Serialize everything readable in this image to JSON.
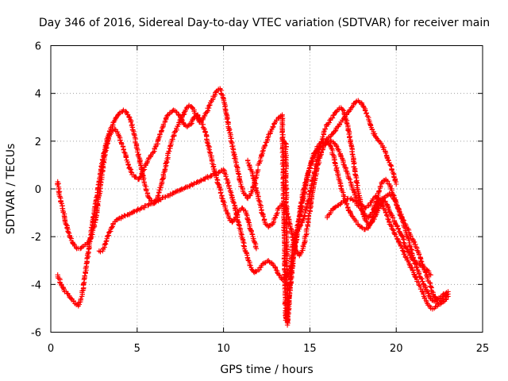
{
  "chart_data": {
    "type": "scatter",
    "title": "Day 346 of 2016, Sidereal Day-to-day VTEC variation (SDTVAR) for receiver main",
    "xlabel": "GPS time / hours",
    "ylabel": "SDTVAR / TECUs",
    "xlim": [
      0,
      25
    ],
    "ylim": [
      -6,
      6
    ],
    "xticks": [
      0,
      5,
      10,
      15,
      20,
      25
    ],
    "yticks": [
      -6,
      -4,
      -2,
      0,
      2,
      4,
      6
    ],
    "grid": true,
    "marker": "+",
    "color": "#ff0000",
    "series": [
      {
        "x": [
          0.4,
          0.5,
          0.7,
          0.9,
          1.1,
          1.3,
          1.5,
          1.7,
          1.9,
          2.1,
          2.3,
          2.5,
          2.7,
          2.9,
          3.1,
          3.3,
          3.5,
          3.7,
          3.9,
          4.1,
          4.3,
          4.5,
          4.7,
          4.9,
          5.1,
          5.3,
          5.5,
          5.7,
          5.9,
          6.1,
          6.3,
          6.5,
          6.7,
          6.9,
          7.1,
          7.3,
          7.5,
          7.7,
          7.9,
          8.1,
          8.3,
          8.5,
          8.7,
          8.9,
          9.1,
          9.3,
          9.5,
          9.7,
          9.9,
          10.1,
          10.3,
          10.5,
          10.7,
          10.9,
          11.1,
          11.3,
          11.5,
          11.7,
          11.9
        ],
        "y": [
          0.3,
          -0.3,
          -0.9,
          -1.5,
          -2.0,
          -2.3,
          -2.5,
          -2.5,
          -2.4,
          -2.3,
          -2.1,
          -1.6,
          -0.8,
          0.3,
          1.3,
          2.0,
          2.4,
          2.5,
          2.3,
          1.9,
          1.5,
          1.0,
          0.6,
          0.5,
          0.4,
          0.7,
          1.0,
          1.3,
          1.5,
          1.8,
          2.2,
          2.6,
          3.0,
          3.2,
          3.3,
          3.2,
          3.0,
          2.7,
          2.6,
          2.7,
          3.0,
          3.1,
          2.9,
          2.5,
          1.9,
          1.3,
          0.7,
          0.2,
          -0.3,
          -0.8,
          -1.2,
          -1.4,
          -1.2,
          -0.9,
          -0.8,
          -1.0,
          -1.5,
          -2.0,
          -2.5
        ]
      },
      {
        "x": [
          0.4,
          0.6,
          0.8,
          1.0,
          1.2,
          1.4,
          1.6,
          1.8,
          2.0,
          2.2,
          2.4,
          2.6,
          2.8,
          3.0,
          3.2,
          3.4,
          3.6,
          3.8,
          4.0,
          4.2,
          4.4,
          4.6,
          4.8,
          5.0,
          5.2,
          5.4,
          5.6,
          5.8,
          6.0,
          6.2,
          6.4,
          6.6,
          6.8,
          7.0,
          7.2,
          7.4,
          7.6,
          7.8,
          8.0,
          8.2,
          8.4,
          8.6,
          8.8,
          9.0,
          9.2,
          9.4,
          9.6,
          9.8,
          10.0,
          10.2,
          10.4,
          10.6,
          10.8,
          11.0,
          11.2,
          11.4,
          11.6,
          11.8,
          12.0
        ],
        "y": [
          -3.6,
          -4.0,
          -4.3,
          -4.4,
          -4.6,
          -4.8,
          -4.9,
          -4.5,
          -3.5,
          -2.5,
          -1.5,
          -0.6,
          0.3,
          1.2,
          1.9,
          2.4,
          2.7,
          3.0,
          3.2,
          3.3,
          3.2,
          2.9,
          2.4,
          1.7,
          1.0,
          0.3,
          -0.2,
          -0.5,
          -0.6,
          -0.3,
          0.2,
          0.8,
          1.5,
          2.0,
          2.4,
          2.7,
          3.0,
          3.3,
          3.5,
          3.4,
          3.1,
          2.8,
          2.9,
          3.2,
          3.5,
          3.8,
          4.1,
          4.2,
          3.8,
          3.0,
          2.2,
          1.5,
          0.8,
          0.2,
          -0.2,
          -0.4,
          -0.2,
          0.3,
          0.8
        ]
      },
      {
        "x": [
          2.8,
          3.0,
          3.2,
          3.4,
          3.6,
          3.8,
          10.0,
          10.2,
          10.4,
          10.6,
          10.8,
          11.0,
          11.2,
          11.4,
          11.6,
          11.8,
          12.0,
          12.2,
          12.4,
          12.6,
          12.8,
          13.0,
          13.2,
          13.4,
          13.6,
          13.8,
          14.0,
          14.2,
          14.4,
          14.6,
          14.8,
          15.0,
          15.2,
          15.4,
          15.6,
          15.8,
          16.0,
          16.2,
          16.4,
          16.6,
          16.8,
          17.0,
          17.2,
          17.4,
          17.6,
          17.8,
          18.0,
          18.2,
          18.4,
          18.6,
          18.8,
          19.0,
          19.2,
          19.4,
          19.6,
          19.8,
          20.0
        ],
        "y": [
          -2.6,
          -2.6,
          -2.2,
          -1.8,
          -1.5,
          -1.3,
          0.8,
          0.4,
          -0.1,
          -0.6,
          -1.2,
          -1.8,
          -2.4,
          -2.9,
          -3.3,
          -3.5,
          -3.4,
          -3.2,
          -3.1,
          -3.0,
          -3.1,
          -3.3,
          -3.6,
          -3.8,
          -3.7,
          -3.5,
          -3.0,
          -2.2,
          -1.3,
          -0.5,
          0.3,
          0.9,
          1.4,
          1.7,
          1.9,
          2.0,
          2.1,
          2.2,
          2.4,
          2.6,
          2.8,
          3.0,
          3.2,
          3.4,
          3.6,
          3.7,
          3.6,
          3.3,
          2.9,
          2.5,
          2.2,
          2.0,
          1.8,
          1.5,
          1.1,
          0.7,
          0.2
        ]
      },
      {
        "x": [
          12.0,
          12.2,
          12.4,
          12.6,
          12.8,
          13.0,
          13.2,
          13.4,
          13.6,
          13.8,
          14.0,
          14.2,
          14.4,
          14.6,
          14.8,
          15.0,
          15.2,
          15.4,
          15.6,
          15.8,
          16.0,
          16.2,
          16.4,
          16.6,
          16.8,
          17.0,
          17.2,
          17.4,
          17.6,
          17.8,
          18.0,
          18.2,
          18.4,
          18.6,
          18.8,
          19.0,
          19.2,
          19.4,
          19.6,
          19.8,
          20.0,
          20.2,
          20.4,
          20.6,
          20.8,
          21.0,
          21.2,
          21.4,
          21.6,
          21.8,
          22.0,
          22.2,
          22.4,
          22.6,
          22.8,
          23.0
        ],
        "y": [
          1.0,
          1.4,
          1.8,
          2.2,
          2.5,
          2.8,
          3.0,
          3.1,
          -5.5,
          -4.5,
          -3.2,
          -2.0,
          -1.0,
          -0.2,
          0.4,
          0.9,
          1.3,
          1.6,
          1.8,
          1.9,
          2.0,
          2.0,
          1.9,
          1.7,
          1.4,
          1.0,
          0.6,
          0.2,
          -0.2,
          -0.5,
          -0.7,
          -0.8,
          -0.7,
          -0.5,
          -0.3,
          -0.4,
          -0.7,
          -1.0,
          -1.4,
          -1.7,
          -2.0,
          -2.3,
          -2.6,
          -2.9,
          -3.2,
          -3.5,
          -3.8,
          -4.1,
          -4.5,
          -4.8,
          -5.0,
          -5.0,
          -4.9,
          -4.7,
          -4.5,
          -4.4
        ]
      },
      {
        "x": [
          13.4,
          13.5,
          13.6,
          13.7,
          13.8,
          13.9,
          14.0,
          14.2,
          14.4,
          14.6,
          14.8,
          15.0,
          15.2,
          15.4,
          15.6,
          15.8,
          16.0,
          16.2,
          16.4,
          16.6,
          16.8,
          17.0,
          17.2,
          17.4,
          17.6,
          17.8,
          18.0,
          18.2,
          18.4,
          18.6,
          18.8,
          19.0,
          19.2,
          19.4,
          19.6,
          19.8,
          20.0,
          20.2,
          20.4,
          20.6,
          20.8,
          21.0,
          21.2,
          21.4,
          21.6,
          21.8,
          22.0,
          22.2,
          22.4,
          22.6,
          22.8,
          23.0
        ],
        "y": [
          2.1,
          2.0,
          1.9,
          -5.7,
          -4.6,
          -3.4,
          -2.4,
          -1.8,
          -1.6,
          -1.3,
          -0.8,
          -0.2,
          0.5,
          1.2,
          1.8,
          2.3,
          2.7,
          2.9,
          3.1,
          3.3,
          3.4,
          3.2,
          2.6,
          1.8,
          0.8,
          -0.1,
          -0.8,
          -1.3,
          -1.5,
          -1.4,
          -1.1,
          -0.8,
          -0.5,
          -0.3,
          -0.2,
          -0.3,
          -0.6,
          -1.0,
          -1.4,
          -1.9,
          -2.4,
          -2.9,
          -3.3,
          -3.7,
          -4.0,
          -4.3,
          -4.6,
          -4.7,
          -4.6,
          -4.5,
          -4.4,
          -4.3
        ]
      },
      {
        "x": [
          16.0,
          16.2,
          16.4,
          16.6,
          16.8,
          17.0,
          17.2,
          17.4,
          17.6,
          17.8,
          18.0,
          18.2,
          18.4,
          18.6,
          18.8,
          19.0,
          19.2,
          19.4,
          19.6,
          19.8,
          20.0,
          20.2,
          20.4,
          20.6,
          20.8,
          21.0,
          21.2,
          21.4,
          21.6,
          21.8,
          22.0,
          22.2,
          22.4,
          22.6,
          22.8,
          23.0
        ],
        "y": [
          -1.2,
          -1.0,
          -0.8,
          -0.7,
          -0.6,
          -0.5,
          -0.4,
          -0.4,
          -0.5,
          -0.7,
          -0.9,
          -1.1,
          -1.2,
          -1.0,
          -0.6,
          -0.1,
          0.3,
          0.4,
          0.2,
          -0.2,
          -0.6,
          -1.0,
          -1.3,
          -1.6,
          -1.9,
          -2.2,
          -2.5,
          -2.9,
          -3.3,
          -3.7,
          -4.1,
          -4.5,
          -4.8,
          -4.8,
          -4.7,
          -4.5
        ]
      },
      {
        "x": [
          11.4,
          11.6,
          11.8,
          12.0,
          12.2,
          12.4,
          12.6,
          12.8,
          13.0,
          13.2,
          13.4,
          13.6,
          13.8,
          14.0,
          14.2,
          14.4,
          14.6,
          14.8,
          15.0,
          15.2,
          15.4,
          15.6,
          15.8,
          16.0,
          16.2,
          16.4,
          16.6,
          16.8,
          17.0,
          17.2,
          17.4,
          17.6,
          17.8,
          18.0,
          18.2,
          18.4,
          18.6,
          18.8,
          19.0,
          19.2,
          19.4,
          19.6,
          19.8,
          20.0,
          20.2,
          20.4,
          20.6,
          20.8,
          21.0,
          21.2,
          21.4,
          21.6,
          21.8,
          22.0
        ],
        "y": [
          1.2,
          0.8,
          0.3,
          -0.3,
          -0.9,
          -1.4,
          -1.6,
          -1.5,
          -1.2,
          -0.8,
          -0.6,
          -0.8,
          -1.3,
          -2.0,
          -2.6,
          -2.8,
          -2.5,
          -1.8,
          -0.9,
          0.0,
          0.8,
          1.4,
          1.8,
          2.0,
          1.8,
          1.3,
          0.7,
          0.1,
          -0.4,
          -0.8,
          -1.1,
          -1.3,
          -1.5,
          -1.6,
          -1.7,
          -1.6,
          -1.3,
          -0.9,
          -0.5,
          -0.4,
          -0.6,
          -0.9,
          -1.2,
          -1.5,
          -1.8,
          -2.1,
          -2.5,
          -2.8,
          -3.0,
          -3.1,
          -3.2,
          -3.3,
          -3.4,
          -3.6
        ]
      }
    ]
  }
}
